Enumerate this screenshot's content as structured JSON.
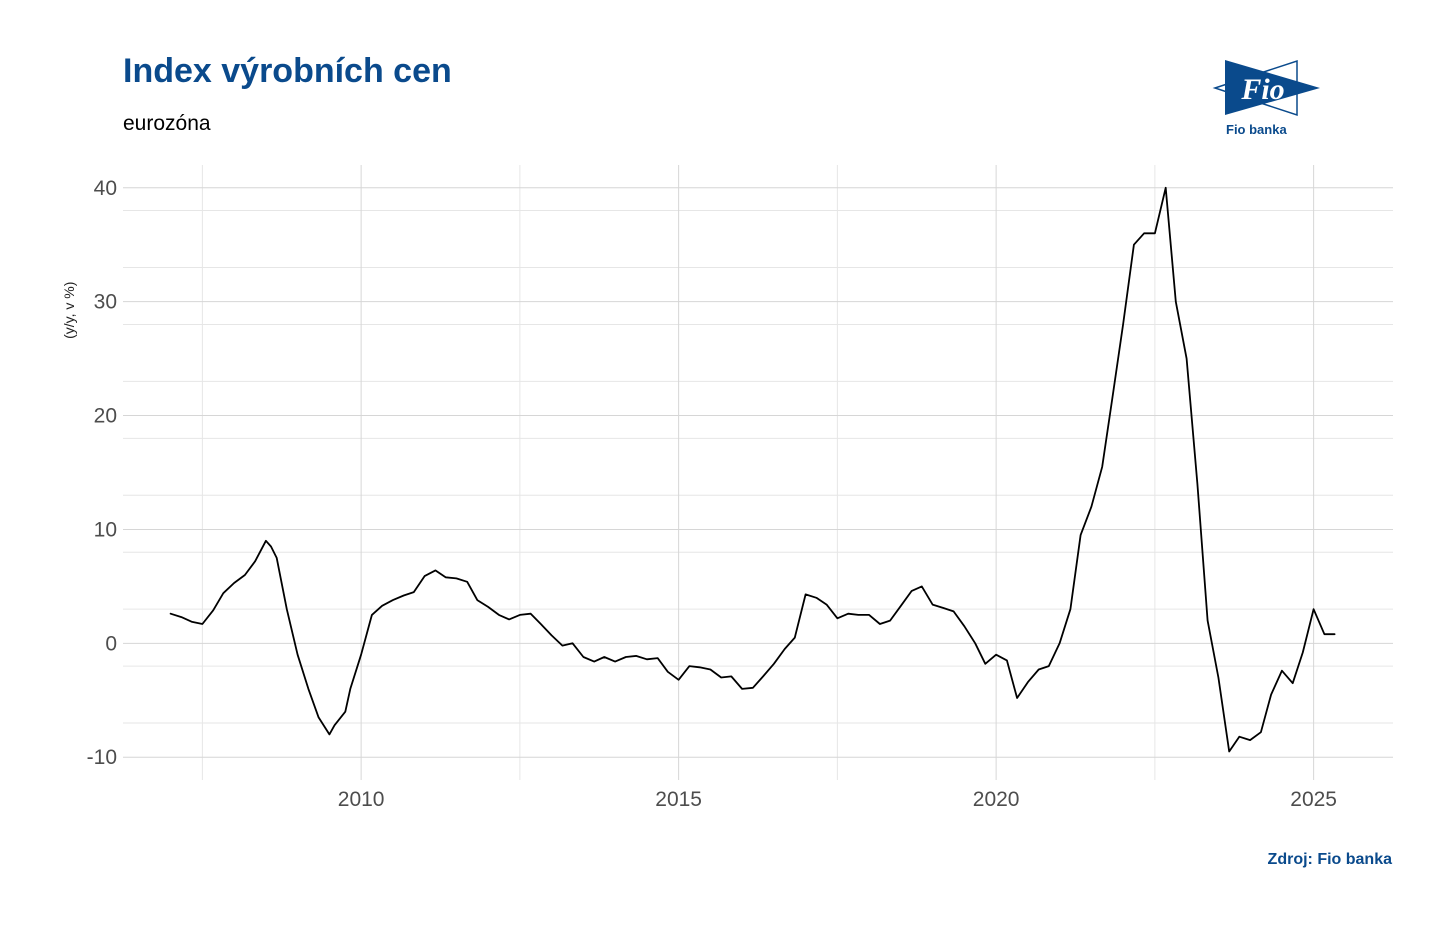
{
  "title": "Index výrobních cen",
  "subtitle": "eurozóna",
  "source": "Zdroj: Fio banka",
  "logo": {
    "brand": "Fio",
    "caption": "Fio banka",
    "color": "#0a4a8c"
  },
  "chart_data": {
    "type": "line",
    "ylabel": "(y/y, v %)",
    "xlabel": "",
    "xlim": [
      2006.25,
      2026.25
    ],
    "ylim": [
      -12,
      42
    ],
    "x_ticks": [
      2010,
      2015,
      2020,
      2025
    ],
    "y_ticks": [
      -10,
      0,
      10,
      20,
      30,
      40
    ],
    "grid": true,
    "line_color": "#000000",
    "series": [
      {
        "x": [
          2007.0,
          2007.17,
          2007.33,
          2007.5,
          2007.67,
          2007.83,
          2008.0,
          2008.17,
          2008.33,
          2008.5,
          2008.58,
          2008.67,
          2008.83,
          2009.0,
          2009.17,
          2009.33,
          2009.5,
          2009.58,
          2009.75,
          2009.83,
          2010.0,
          2010.17,
          2010.33,
          2010.5,
          2010.67,
          2010.83,
          2011.0,
          2011.17,
          2011.33,
          2011.5,
          2011.67,
          2011.83,
          2012.0,
          2012.17,
          2012.33,
          2012.5,
          2012.67,
          2012.83,
          2013.0,
          2013.17,
          2013.33,
          2013.5,
          2013.67,
          2013.83,
          2014.0,
          2014.17,
          2014.33,
          2014.5,
          2014.67,
          2014.83,
          2015.0,
          2015.17,
          2015.33,
          2015.5,
          2015.67,
          2015.83,
          2016.0,
          2016.17,
          2016.33,
          2016.5,
          2016.67,
          2016.83,
          2017.0,
          2017.17,
          2017.33,
          2017.5,
          2017.67,
          2017.83,
          2018.0,
          2018.17,
          2018.33,
          2018.5,
          2018.67,
          2018.83,
          2019.0,
          2019.17,
          2019.33,
          2019.5,
          2019.67,
          2019.83,
          2020.0,
          2020.17,
          2020.33,
          2020.5,
          2020.67,
          2020.83,
          2021.0,
          2021.17,
          2021.33,
          2021.5,
          2021.67,
          2021.83,
          2022.0,
          2022.17,
          2022.33,
          2022.5,
          2022.67,
          2022.83,
          2023.0,
          2023.17,
          2023.33,
          2023.5,
          2023.67,
          2023.83,
          2024.0,
          2024.17,
          2024.33,
          2024.5,
          2024.67,
          2024.83,
          2025.0,
          2025.17,
          2025.33
        ],
        "values": [
          2.6,
          2.3,
          1.9,
          1.7,
          2.9,
          4.4,
          5.3,
          6.0,
          7.2,
          9.0,
          8.5,
          7.5,
          3.0,
          -1.0,
          -4.0,
          -6.5,
          -8.0,
          -7.2,
          -6.0,
          -4.0,
          -1.0,
          2.5,
          3.3,
          3.8,
          4.2,
          4.5,
          5.9,
          6.4,
          5.8,
          5.7,
          5.4,
          3.8,
          3.2,
          2.5,
          2.1,
          2.5,
          2.6,
          1.7,
          0.7,
          -0.2,
          0.0,
          -1.2,
          -1.6,
          -1.2,
          -1.6,
          -1.2,
          -1.1,
          -1.4,
          -1.3,
          -2.5,
          -3.2,
          -2.0,
          -2.1,
          -2.3,
          -3.0,
          -2.9,
          -4.0,
          -3.9,
          -2.9,
          -1.8,
          -0.5,
          0.5,
          4.3,
          4.0,
          3.4,
          2.2,
          2.6,
          2.5,
          2.5,
          1.7,
          2.0,
          3.3,
          4.6,
          5.0,
          3.4,
          3.1,
          2.8,
          1.5,
          0.0,
          -1.8,
          -1.0,
          -1.5,
          -4.8,
          -3.4,
          -2.3,
          -2.0,
          0.0,
          3.0,
          9.5,
          12.0,
          15.5,
          21.5,
          28.0,
          35.0,
          36.0,
          36.0,
          40.0,
          30.0,
          25.0,
          14.0,
          2.0,
          -3.0,
          -9.5,
          -8.2,
          -8.5,
          -7.8,
          -4.5,
          -2.4,
          -3.5,
          -0.8,
          3.0,
          0.8,
          0.8
        ]
      }
    ]
  }
}
